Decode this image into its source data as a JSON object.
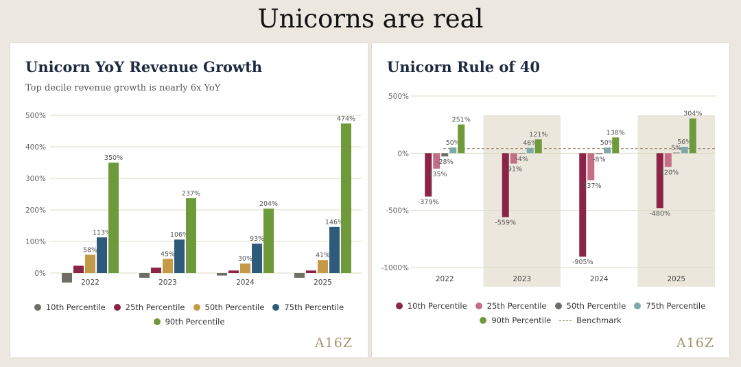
{
  "page": {
    "title": "Unicorns are real"
  },
  "logo": "A16Z",
  "chart_data": [
    {
      "type": "bar",
      "title": "Unicorn YoY Revenue Growth",
      "subtitle": "Top decile revenue growth is nearly 6x YoY",
      "categories": [
        "2022",
        "2023",
        "2024",
        "2025"
      ],
      "ylim": [
        -50,
        500
      ],
      "yticks": [
        0,
        100,
        200,
        300,
        400,
        500
      ],
      "ytick_labels": [
        "0%",
        "100%",
        "200%",
        "300%",
        "400%",
        "500%"
      ],
      "grid": true,
      "legend_position": "bottom",
      "series": [
        {
          "name": "10th Percentile",
          "color": "#6f6e66",
          "values": [
            -30,
            -15,
            -8,
            -15
          ],
          "labels": [
            "",
            "",
            "",
            ""
          ]
        },
        {
          "name": "25th Percentile",
          "color": "#8b2447",
          "values": [
            23,
            17,
            8,
            8
          ],
          "labels": [
            "",
            "",
            "",
            ""
          ]
        },
        {
          "name": "50th Percentile",
          "color": "#c59a46",
          "values": [
            58,
            45,
            30,
            41
          ],
          "labels": [
            "58%",
            "45%",
            "30%",
            "41%"
          ]
        },
        {
          "name": "75th Percentile",
          "color": "#2e5b7b",
          "values": [
            113,
            106,
            93,
            146
          ],
          "labels": [
            "113%",
            "106%",
            "93%",
            "146%"
          ]
        },
        {
          "name": "90th Percentile",
          "color": "#6f9a3b",
          "values": [
            350,
            237,
            204,
            474
          ],
          "labels": [
            "350%",
            "237%",
            "204%",
            "474%"
          ]
        }
      ]
    },
    {
      "type": "bar",
      "title": "Unicorn Rule of 40",
      "categories": [
        "2022",
        "2023",
        "2024",
        "2025"
      ],
      "ylim": [
        -1000,
        500
      ],
      "yticks": [
        500,
        0,
        -500,
        -1000
      ],
      "ytick_labels": [
        "500%",
        "0%",
        "-500%",
        "-1000%"
      ],
      "grid": true,
      "legend_position": "bottom",
      "shaded_categories": [
        "2023",
        "2025"
      ],
      "benchmark": {
        "name": "Benchmark",
        "value": 40,
        "color": "#a08a70"
      },
      "series": [
        {
          "name": "10th Percentile",
          "color": "#8b2447",
          "values": [
            -379,
            -559,
            -905,
            -480
          ],
          "labels": [
            "-379%",
            "-559%",
            "-905%",
            "-480%"
          ]
        },
        {
          "name": "25th Percentile",
          "color": "#c46f86",
          "values": [
            -135,
            -91,
            -237,
            -120
          ],
          "labels": [
            "-135%",
            "-91%",
            "-237%",
            "-120%"
          ]
        },
        {
          "name": "50th Percentile",
          "color": "#6f6e66",
          "values": [
            -28,
            -4,
            -8,
            5
          ],
          "labels": [
            "-28%",
            "-4%",
            "-8%",
            "5%"
          ]
        },
        {
          "name": "75th Percentile",
          "color": "#7fa8a8",
          "values": [
            50,
            46,
            50,
            56
          ],
          "labels": [
            "50%",
            "46%",
            "50%",
            "56%"
          ]
        },
        {
          "name": "90th Percentile",
          "color": "#6f9a3b",
          "values": [
            251,
            121,
            138,
            304
          ],
          "labels": [
            "251%",
            "121%",
            "138%",
            "304%"
          ]
        }
      ]
    }
  ]
}
